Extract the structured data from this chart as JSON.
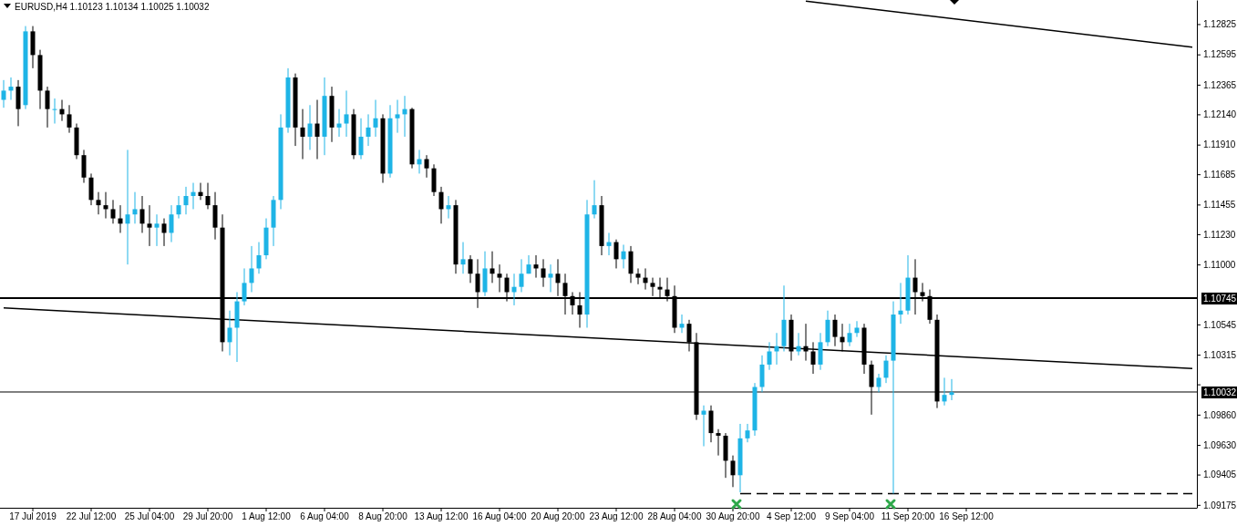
{
  "chart_data": {
    "type": "candlestick",
    "title": "EURUSD,H4  1.10123 1.10134 1.10025 1.10032",
    "categories": [
      null,
      null,
      null,
      null,
      "17 Jul 2019",
      null,
      null,
      null,
      null,
      null,
      null,
      null,
      "22 Jul 12:00",
      null,
      null,
      null,
      null,
      null,
      null,
      null,
      "25 Jul 04:00",
      null,
      null,
      null,
      null,
      null,
      null,
      null,
      "29 Jul 20:00",
      null,
      null,
      null,
      null,
      null,
      null,
      null,
      "1 Aug 12:00",
      null,
      null,
      null,
      null,
      null,
      null,
      null,
      "6 Aug 04:00",
      null,
      null,
      null,
      null,
      null,
      null,
      null,
      "8 Aug 20:00",
      null,
      null,
      null,
      null,
      null,
      null,
      null,
      "13 Aug 12:00",
      null,
      null,
      null,
      null,
      null,
      null,
      null,
      "16 Aug 04:00",
      null,
      null,
      null,
      null,
      null,
      null,
      null,
      "20 Aug 20:00",
      null,
      null,
      null,
      null,
      null,
      null,
      null,
      "23 Aug 12:00",
      null,
      null,
      null,
      null,
      null,
      null,
      null,
      "28 Aug 04:00",
      null,
      null,
      null,
      null,
      null,
      null,
      null,
      "30 Aug 20:00",
      null,
      null,
      null,
      null,
      null,
      null,
      null,
      "4 Sep 12:00",
      null,
      null,
      null,
      null,
      null,
      null,
      null,
      "9 Sep 04:00",
      null,
      null,
      null,
      null,
      null,
      null,
      null,
      "11 Sep 20:00",
      null,
      null,
      null,
      null,
      null,
      null,
      null,
      "16 Sep 12:00",
      null,
      null,
      null,
      null,
      null,
      null,
      null,
      null,
      null,
      null,
      null,
      null,
      null,
      null,
      null,
      null,
      null,
      null,
      null,
      null,
      null,
      null,
      null,
      null,
      null,
      null,
      null,
      null,
      null,
      null,
      null
    ],
    "colors": [
      "#1eb4e6",
      "#1eb4e6",
      "#000000",
      "#1eb4e6",
      "#000000",
      "#000000",
      "#000000",
      "#1eb4e6",
      "#000000",
      "#000000",
      "#000000",
      "#000000",
      "#000000",
      "#000000",
      "#000000",
      "#000000",
      "#000000",
      "#1eb4e6",
      "#1eb4e6",
      "#000000",
      "#000000",
      "#1eb4e6",
      "#000000",
      "#1eb4e6",
      "#1eb4e6",
      "#1eb4e6",
      "#1eb4e6",
      "#000000",
      "#000000",
      "#000000",
      "#000000",
      "#1eb4e6",
      "#1eb4e6",
      "#1eb4e6",
      "#1eb4e6",
      "#1eb4e6",
      "#1eb4e6",
      "#1eb4e6",
      "#1eb4e6",
      "#1eb4e6",
      "#000000",
      "#000000",
      "#1eb4e6",
      "#000000",
      "#1eb4e6",
      "#000000",
      "#1eb4e6",
      "#1eb4e6",
      "#000000",
      "#1eb4e6",
      "#1eb4e6",
      "#1eb4e6",
      "#000000",
      "#1eb4e6",
      "#1eb4e6",
      "#1eb4e6",
      "#000000",
      "#1eb4e6",
      "#000000",
      "#000000",
      "#000000",
      "#1eb4e6",
      "#000000",
      "#1eb4e6",
      "#000000",
      "#000000",
      "#1eb4e6",
      "#000000",
      "#000000",
      "#000000",
      "#1eb4e6",
      "#1eb4e6",
      "#1eb4e6",
      "#000000",
      "#000000",
      "#1eb4e6",
      "#000000",
      "#000000",
      "#000000",
      "#000000",
      "#1eb4e6",
      "#1eb4e6",
      "#000000",
      "#1eb4e6",
      "#000000",
      "#1eb4e6",
      "#000000",
      "#000000",
      "#000000",
      "#000000",
      "#000000",
      "#000000",
      "#000000",
      "#1eb4e6",
      "#000000",
      "#000000",
      "#1eb4e6",
      "#000000",
      "#000000",
      "#000000",
      "#000000",
      "#1eb4e6",
      "#1eb4e6",
      "#1eb4e6",
      "#1eb4e6",
      "#1eb4e6",
      "#1eb4e6",
      "#1eb4e6",
      "#000000",
      "#1eb4e6",
      "#000000",
      "#000000",
      "#1eb4e6",
      "#1eb4e6",
      "#000000",
      "#000000",
      "#1eb4e6",
      "#1eb4e6",
      "#000000",
      "#000000",
      "#1eb4e6",
      "#1eb4e6",
      "#1eb4e6",
      "#1eb4e6",
      "#1eb4e6",
      "#000000",
      "#000000",
      "#000000",
      "#000000",
      "#1eb4e6",
      "#1eb4e6",
      null,
      null,
      null,
      null,
      null,
      null,
      null,
      null,
      null,
      null,
      null,
      null,
      null,
      null,
      null,
      null,
      null,
      null,
      null,
      null,
      null,
      null,
      null,
      null,
      null,
      null,
      null,
      null,
      null,
      null,
      null,
      null,
      null
    ],
    "ohlc": [
      [
        1.1225,
        1.124,
        1.1219,
        1.1232
      ],
      [
        1.1232,
        1.1242,
        1.1225,
        1.1235
      ],
      [
        1.1235,
        1.124,
        1.1205,
        1.1218
      ],
      [
        1.1221,
        1.1281,
        1.1218,
        1.1277
      ],
      [
        1.1277,
        1.1281,
        1.1249,
        1.1259
      ],
      [
        1.1259,
        1.1263,
        1.1218,
        1.1232
      ],
      [
        1.1232,
        1.1235,
        1.1204,
        1.1218
      ],
      [
        1.1218,
        1.1226,
        1.1207,
        1.1218
      ],
      [
        1.1218,
        1.1225,
        1.1209,
        1.1214
      ],
      [
        1.1214,
        1.1221,
        1.12,
        1.1204
      ],
      [
        1.1204,
        1.1207,
        1.118,
        1.1183
      ],
      [
        1.1183,
        1.1187,
        1.1162,
        1.1166
      ],
      [
        1.1166,
        1.1169,
        1.1145,
        1.1149
      ],
      [
        1.1149,
        1.1155,
        1.1138,
        1.1145
      ],
      [
        1.1145,
        1.1155,
        1.1135,
        1.1142
      ],
      [
        1.1142,
        1.1149,
        1.1131,
        1.1135
      ],
      [
        1.1135,
        1.1145,
        1.1124,
        1.1131
      ],
      [
        1.1131,
        1.1187,
        1.11,
        1.1138
      ],
      [
        1.1138,
        1.1155,
        1.1131,
        1.1142
      ],
      [
        1.1142,
        1.1152,
        1.1124,
        1.1131
      ],
      [
        1.1131,
        1.1145,
        1.1114,
        1.1128
      ],
      [
        1.1128,
        1.1138,
        1.1114,
        1.1131
      ],
      [
        1.1131,
        1.1135,
        1.1114,
        1.1124
      ],
      [
        1.1124,
        1.1145,
        1.1117,
        1.1138
      ],
      [
        1.1138,
        1.1152,
        1.1135,
        1.1145
      ],
      [
        1.1145,
        1.1159,
        1.1138,
        1.1152
      ],
      [
        1.1152,
        1.1162,
        1.1142,
        1.1155
      ],
      [
        1.1155,
        1.1162,
        1.1149,
        1.1152
      ],
      [
        1.1152,
        1.1162,
        1.1142,
        1.1145
      ],
      [
        1.1145,
        1.1155,
        1.1119,
        1.1128
      ],
      [
        1.1128,
        1.1138,
        1.1034,
        1.1041
      ],
      [
        1.1041,
        1.1065,
        1.1031,
        1.1052
      ],
      [
        1.1052,
        1.1079,
        1.1026,
        1.1072
      ],
      [
        1.1072,
        1.1097,
        1.1069,
        1.1086
      ],
      [
        1.1086,
        1.1114,
        1.1079,
        1.1097
      ],
      [
        1.1097,
        1.1117,
        1.1093,
        1.1107
      ],
      [
        1.1107,
        1.1135,
        1.1104,
        1.1128
      ],
      [
        1.1128,
        1.1152,
        1.1114,
        1.1149
      ],
      [
        1.1149,
        1.1214,
        1.1142,
        1.1204
      ],
      [
        1.1204,
        1.1249,
        1.12,
        1.1242
      ],
      [
        1.1242,
        1.1245,
        1.119,
        1.1204
      ],
      [
        1.1204,
        1.1218,
        1.118,
        1.1197
      ],
      [
        1.1197,
        1.1221,
        1.1187,
        1.1207
      ],
      [
        1.1207,
        1.1225,
        1.118,
        1.1197
      ],
      [
        1.1197,
        1.1242,
        1.1183,
        1.1228
      ],
      [
        1.1228,
        1.1235,
        1.1193,
        1.1204
      ],
      [
        1.1204,
        1.1218,
        1.1197,
        1.1207
      ],
      [
        1.1207,
        1.1232,
        1.1197,
        1.1214
      ],
      [
        1.1214,
        1.1218,
        1.118,
        1.1183
      ],
      [
        1.1183,
        1.1211,
        1.118,
        1.1197
      ],
      [
        1.1197,
        1.1214,
        1.119,
        1.1204
      ],
      [
        1.1204,
        1.1225,
        1.1197,
        1.1211
      ],
      [
        1.1211,
        1.1214,
        1.1162,
        1.1169
      ],
      [
        1.1169,
        1.1221,
        1.1166,
        1.1211
      ],
      [
        1.1211,
        1.1225,
        1.12,
        1.1214
      ],
      [
        1.1214,
        1.1228,
        1.1197,
        1.1218
      ],
      [
        1.1218,
        1.1219,
        1.1173,
        1.1176
      ],
      [
        1.1176,
        1.1187,
        1.1169,
        1.118
      ],
      [
        1.118,
        1.1183,
        1.1166,
        1.1173
      ],
      [
        1.1173,
        1.1176,
        1.1152,
        1.1155
      ],
      [
        1.1155,
        1.1159,
        1.1131,
        1.1142
      ],
      [
        1.1142,
        1.1152,
        1.1135,
        1.1145
      ],
      [
        1.1145,
        1.1149,
        1.1093,
        1.11
      ],
      [
        1.11,
        1.1117,
        1.1093,
        1.1104
      ],
      [
        1.1104,
        1.1107,
        1.1086,
        1.1093
      ],
      [
        1.1093,
        1.1104,
        1.1067,
        1.1079
      ],
      [
        1.1079,
        1.111,
        1.1076,
        1.1097
      ],
      [
        1.1097,
        1.111,
        1.1086,
        1.1093
      ],
      [
        1.1093,
        1.11,
        1.1079,
        1.109
      ],
      [
        1.109,
        1.1093,
        1.1072,
        1.1079
      ],
      [
        1.1079,
        1.1093,
        1.1069,
        1.1083
      ],
      [
        1.1083,
        1.1104,
        1.1079,
        1.1093
      ],
      [
        1.1093,
        1.1107,
        1.1093,
        1.11
      ],
      [
        1.11,
        1.1107,
        1.109,
        1.1097
      ],
      [
        1.1097,
        1.1104,
        1.1083,
        1.109
      ],
      [
        1.109,
        1.11,
        1.1079,
        1.1093
      ],
      [
        1.1093,
        1.1104,
        1.1076,
        1.1086
      ],
      [
        1.1086,
        1.1093,
        1.1062,
        1.1076
      ],
      [
        1.1076,
        1.1079,
        1.1062,
        1.1069
      ],
      [
        1.1069,
        1.1079,
        1.1052,
        1.1062
      ],
      [
        1.1062,
        1.1149,
        1.1052,
        1.1138
      ],
      [
        1.1138,
        1.1164,
        1.1135,
        1.1145
      ],
      [
        1.1145,
        1.1152,
        1.1107,
        1.1114
      ],
      [
        1.1114,
        1.1124,
        1.1107,
        1.1117
      ],
      [
        1.1117,
        1.1119,
        1.1097,
        1.1104
      ],
      [
        1.1104,
        1.1115,
        1.1097,
        1.111
      ],
      [
        1.111,
        1.1114,
        1.1086,
        1.1093
      ],
      [
        1.1093,
        1.1097,
        1.1085,
        1.109
      ],
      [
        1.109,
        1.1097,
        1.1081,
        1.1086
      ],
      [
        1.1086,
        1.109,
        1.1076,
        1.1083
      ],
      [
        1.1083,
        1.109,
        1.1074,
        1.1081
      ],
      [
        1.1081,
        1.109,
        1.1072,
        1.1076
      ],
      [
        1.1076,
        1.1084,
        1.1048,
        1.1052
      ],
      [
        1.1052,
        1.1062,
        1.1048,
        1.1055
      ],
      [
        1.1055,
        1.1058,
        1.1034,
        1.1041
      ],
      [
        1.1041,
        1.1048,
        1.0982,
        1.0986
      ],
      [
        1.0986,
        1.0993,
        1.0962,
        1.0989
      ],
      [
        1.0989,
        1.0993,
        1.0965,
        1.0972
      ],
      [
        1.0972,
        1.0975,
        1.0955,
        1.097
      ],
      [
        1.097,
        1.0972,
        1.0938,
        1.0951
      ],
      [
        1.0951,
        1.0955,
        1.0931,
        1.094
      ],
      [
        1.094,
        1.0979,
        1.0927,
        1.0968
      ],
      [
        1.0968,
        1.0979,
        1.0965,
        1.0974
      ],
      [
        1.0974,
        1.101,
        1.097,
        1.1007
      ],
      [
        1.1007,
        1.1031,
        1.1003,
        1.1024
      ],
      [
        1.1024,
        1.1041,
        1.102,
        1.1034
      ],
      [
        1.1034,
        1.1048,
        1.1024,
        1.1038
      ],
      [
        1.1038,
        1.1084,
        1.1034,
        1.1058
      ],
      [
        1.1058,
        1.1062,
        1.1027,
        1.1034
      ],
      [
        1.1034,
        1.1048,
        1.1031,
        1.1038
      ],
      [
        1.1038,
        1.1055,
        1.1027,
        1.1034
      ],
      [
        1.1034,
        1.1041,
        1.1017,
        1.1024
      ],
      [
        1.1024,
        1.1048,
        1.102,
        1.1041
      ],
      [
        1.1041,
        1.1065,
        1.1038,
        1.1058
      ],
      [
        1.1058,
        1.1062,
        1.1038,
        1.1045
      ],
      [
        1.1045,
        1.1055,
        1.1034,
        1.1041
      ],
      [
        1.1041,
        1.1055,
        1.1038,
        1.1048
      ],
      [
        1.1048,
        1.1057,
        1.1045,
        1.1052
      ],
      [
        1.1052,
        1.1055,
        1.1017,
        1.1024
      ],
      [
        1.1024,
        1.1027,
        1.0986,
        1.1007
      ],
      [
        1.1007,
        1.1017,
        1.1003,
        1.1014
      ],
      [
        1.1014,
        1.1031,
        1.101,
        1.1027
      ],
      [
        1.1027,
        1.1072,
        1.0926,
        1.1062
      ],
      [
        1.1062,
        1.1086,
        1.1055,
        1.1065
      ],
      [
        1.1065,
        1.1107,
        1.1062,
        1.109
      ],
      [
        1.109,
        1.1104,
        1.1062,
        1.1079
      ],
      [
        1.1079,
        1.1086,
        1.1072,
        1.1076
      ],
      [
        1.1076,
        1.1081,
        1.1055,
        1.1058
      ],
      [
        1.1058,
        1.1062,
        1.0991,
        1.0996
      ],
      [
        1.0996,
        1.1014,
        1.0993,
        1.1001
      ],
      [
        1.1001,
        1.1013,
        1.0997,
        1.1003
      ],
      null,
      null,
      null,
      null,
      null,
      null,
      null,
      null,
      null,
      null,
      null,
      null,
      null,
      null,
      null,
      null,
      null,
      null,
      null,
      null,
      null,
      null,
      null,
      null,
      null,
      null,
      null,
      null,
      null,
      null,
      null,
      null,
      null
    ],
    "series": [
      {
        "type": "line",
        "color": "#000000",
        "line_style": "solid",
        "values": [
          1.1067,
          null,
          null,
          null,
          null,
          null,
          null,
          null,
          null,
          null,
          null,
          null,
          null,
          null,
          null,
          null,
          null,
          null,
          null,
          null,
          null,
          null,
          null,
          null,
          null,
          null,
          null,
          null,
          null,
          null,
          null,
          null,
          null,
          null,
          null,
          null,
          null,
          null,
          null,
          null,
          null,
          null,
          null,
          null,
          null,
          null,
          null,
          null,
          null,
          null,
          null,
          null,
          null,
          null,
          null,
          null,
          null,
          null,
          null,
          null,
          null,
          null,
          null,
          null,
          null,
          null,
          null,
          null,
          null,
          null,
          null,
          null,
          null,
          null,
          null,
          null,
          null,
          null,
          null,
          null,
          null,
          null,
          null,
          null,
          null,
          null,
          null,
          null,
          null,
          null,
          null,
          null,
          null,
          null,
          null,
          null,
          null,
          null,
          null,
          null,
          null,
          null,
          null,
          null,
          null,
          null,
          null,
          null,
          null,
          null,
          null,
          null,
          null,
          null,
          null,
          null,
          null,
          null,
          null,
          null,
          null,
          null,
          null,
          null,
          null,
          null,
          null,
          null,
          null,
          null,
          null,
          null,
          null,
          null,
          null,
          null,
          null,
          null,
          null,
          null,
          null,
          null,
          null,
          null,
          null,
          null,
          null,
          null,
          null,
          null,
          null,
          null,
          null,
          null,
          null,
          null,
          null,
          null,
          null,
          null,
          null,
          null,
          null,
          1.1021
        ]
      },
      {
        "type": "line",
        "color": "#000000",
        "line_style": "solid",
        "values": [
          null,
          null,
          null,
          null,
          null,
          null,
          null,
          null,
          null,
          null,
          null,
          null,
          null,
          null,
          null,
          null,
          null,
          null,
          null,
          null,
          null,
          null,
          null,
          null,
          null,
          null,
          null,
          null,
          null,
          null,
          null,
          null,
          null,
          null,
          null,
          null,
          null,
          null,
          null,
          null,
          null,
          null,
          null,
          null,
          null,
          null,
          null,
          null,
          null,
          null,
          null,
          null,
          null,
          null,
          null,
          null,
          null,
          null,
          null,
          null,
          null,
          null,
          null,
          null,
          null,
          null,
          null,
          null,
          null,
          null,
          null,
          null,
          null,
          null,
          null,
          null,
          null,
          null,
          null,
          null,
          null,
          null,
          null,
          null,
          null,
          null,
          null,
          null,
          null,
          null,
          null,
          null,
          null,
          null,
          null,
          null,
          null,
          null,
          null,
          null,
          null,
          null,
          null,
          null,
          null,
          null,
          null,
          null,
          null,
          null,
          1.13,
          null,
          null,
          null,
          null,
          null,
          null,
          null,
          null,
          null,
          null,
          null,
          null,
          null,
          null,
          null,
          null,
          null,
          null,
          null,
          null,
          null,
          null,
          null,
          null,
          null,
          null,
          null,
          null,
          null,
          null,
          null,
          null,
          null,
          null,
          null,
          null,
          null,
          null,
          null,
          null,
          null,
          null,
          null,
          null,
          null,
          null,
          null,
          null,
          null,
          null,
          null,
          null,
          1.1265
        ]
      },
      {
        "type": "line",
        "color": "#000000",
        "line_style": "dashed",
        "values": [
          null,
          null,
          null,
          null,
          null,
          null,
          null,
          null,
          null,
          null,
          null,
          null,
          null,
          null,
          null,
          null,
          null,
          null,
          null,
          null,
          null,
          null,
          null,
          null,
          null,
          null,
          null,
          null,
          null,
          null,
          null,
          null,
          null,
          null,
          null,
          null,
          null,
          null,
          null,
          null,
          null,
          null,
          null,
          null,
          null,
          null,
          null,
          null,
          null,
          null,
          null,
          null,
          null,
          null,
          null,
          null,
          null,
          null,
          null,
          null,
          null,
          null,
          null,
          null,
          null,
          null,
          null,
          null,
          null,
          null,
          null,
          null,
          null,
          null,
          null,
          null,
          null,
          null,
          null,
          null,
          null,
          null,
          null,
          null,
          null,
          null,
          null,
          null,
          null,
          null,
          null,
          null,
          null,
          null,
          null,
          null,
          null,
          null,
          null,
          null,
          null,
          1.0926,
          null,
          null,
          null,
          null,
          null,
          null,
          null,
          null,
          null,
          null,
          null,
          null,
          null,
          null,
          null,
          null,
          null,
          null,
          null,
          null,
          null,
          null,
          null,
          null,
          null,
          null,
          null,
          null,
          null,
          null,
          null,
          null,
          null,
          null,
          null,
          null,
          null,
          null,
          null,
          null,
          null,
          null,
          null,
          null,
          null,
          null,
          null,
          null,
          null,
          null,
          null,
          null,
          null,
          null,
          null,
          null,
          null,
          null,
          null,
          null,
          null,
          1.0926
        ]
      }
    ],
    "ylim": [
      1.09153,
      1.13008
    ],
    "yticks": [
      1.12825,
      1.12595,
      1.12365,
      {
        "value": 1.1214,
        "label": "1.12140"
      },
      {
        "value": 1.1191,
        "label": "1.11910"
      },
      1.11685,
      1.11455,
      {
        "value": 1.1123,
        "label": "1.11230"
      },
      {
        "value": 1.11,
        "label": "1.11000"
      },
      1.10545,
      1.10315,
      {
        "value": 1.1009,
        "label": null
      },
      {
        "value": 1.0986,
        "label": "1.09860"
      },
      {
        "value": 1.0963,
        "label": "1.09630"
      },
      1.09405,
      1.09175
    ],
    "ref_lines": [
      {
        "axis": "y",
        "value": 1.10745,
        "label": "1.10745"
      },
      {
        "axis": "y",
        "value": 1.10032,
        "label": "1.10032"
      }
    ],
    "grid": false
  }
}
